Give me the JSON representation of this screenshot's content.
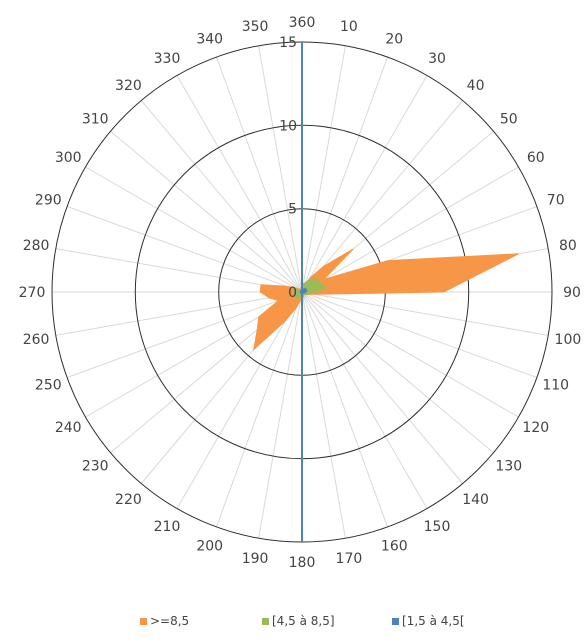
{
  "chart_data": {
    "type": "radar",
    "subtype": "polar-filled",
    "title": "",
    "angle_unit": "degrees",
    "angle_labels": [
      "360",
      "10",
      "20",
      "30",
      "40",
      "50",
      "60",
      "70",
      "80",
      "90",
      "100",
      "110",
      "120",
      "130",
      "140",
      "150",
      "160",
      "170",
      "180",
      "190",
      "200",
      "210",
      "220",
      "230",
      "240",
      "250",
      "260",
      "270",
      "280",
      "290",
      "300",
      "310",
      "320",
      "330",
      "340",
      "350"
    ],
    "radial_ticks": [
      0,
      5,
      10,
      15
    ],
    "rlim": [
      0,
      15
    ],
    "grid": true,
    "legend_position": "bottom",
    "series": [
      {
        "name": ">=8,5",
        "color": "#F79646",
        "values": [
          0.2,
          0.3,
          0.5,
          1.0,
          2.0,
          4.0,
          1.5,
          5.5,
          13.2,
          8.5,
          0.8,
          0.4,
          0.3,
          0.2,
          0.2,
          0.2,
          0.2,
          0.2,
          0.3,
          0.5,
          1.0,
          2.0,
          4.5,
          3.5,
          3.0,
          1.5,
          2.0,
          2.5,
          2.5,
          1.0,
          0.5,
          0.3,
          0.2,
          0.2,
          0.2,
          0.2
        ]
      },
      {
        "name": "[4,5 à 8,5]",
        "color": "#9BBB59",
        "values": [
          0.1,
          0.5,
          0.6,
          0.8,
          1.0,
          1.2,
          1.2,
          1.3,
          1.5,
          0.8,
          0.5,
          0.4,
          0.3,
          0.2,
          0.2,
          0.2,
          0.3,
          0.3,
          0.3,
          0.3,
          0.3,
          0.4,
          0.5,
          0.5,
          0.5,
          0.5,
          0.4,
          0.5,
          0.5,
          0.4,
          0.3,
          0.2,
          0.2,
          0.2,
          0.2,
          0.2
        ]
      },
      {
        "name": "[1,5 à 4,5[",
        "color": "#4F81BD",
        "values": [
          15,
          0.1,
          0.2,
          0.2,
          0.3,
          0.3,
          0.3,
          0.3,
          0.3,
          0.2,
          0.2,
          0.2,
          0.1,
          0.1,
          0.1,
          0.1,
          0.1,
          0.1,
          0.1,
          0.1,
          0.1,
          0.1,
          0.1,
          0.1,
          0.1,
          0.1,
          0.1,
          0.1,
          0.1,
          0.1,
          0.1,
          0.1,
          0.1,
          0.1,
          0.1,
          0.1
        ]
      }
    ]
  }
}
